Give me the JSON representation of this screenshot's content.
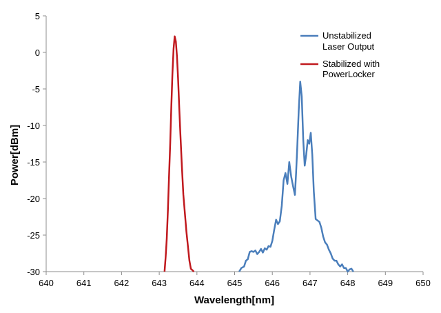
{
  "chart_data": {
    "type": "line",
    "xlabel": "Wavelength[nm]",
    "ylabel": "Power[dBm]",
    "xlim": [
      640,
      650
    ],
    "ylim": [
      -30,
      5
    ],
    "xticks": [
      "640",
      "641",
      "642",
      "643",
      "644",
      "645",
      "646",
      "647",
      "648",
      "649",
      "650"
    ],
    "yticks": [
      "5",
      "0",
      "-5",
      "-10",
      "-15",
      "-20",
      "-25",
      "-30"
    ],
    "grid": false,
    "legend_position": "top-right",
    "series": [
      {
        "name": "Unstabilized Laser Output",
        "legend_lines": [
          "Unstabilized",
          "Laser Output"
        ],
        "color": "#4a7ebb",
        "x": [
          645.12,
          645.18,
          645.25,
          645.3,
          645.35,
          645.4,
          645.45,
          645.5,
          645.55,
          645.6,
          645.65,
          645.7,
          645.75,
          645.8,
          645.85,
          645.9,
          645.95,
          646.0,
          646.05,
          646.1,
          646.15,
          646.2,
          646.25,
          646.3,
          646.35,
          646.4,
          646.45,
          646.5,
          646.55,
          646.6,
          646.63,
          646.66,
          646.7,
          646.74,
          646.78,
          646.82,
          646.86,
          646.9,
          646.94,
          646.98,
          647.02,
          647.06,
          647.1,
          647.15,
          647.2,
          647.25,
          647.3,
          647.35,
          647.4,
          647.45,
          647.5,
          647.55,
          647.6,
          647.65,
          647.7,
          647.75,
          647.8,
          647.85,
          647.9,
          647.95,
          648.0,
          648.05,
          648.1,
          648.15
        ],
        "y": [
          -30,
          -29.5,
          -29.3,
          -28.5,
          -28.3,
          -27.3,
          -27.2,
          -27.3,
          -27.1,
          -27.6,
          -27.3,
          -26.9,
          -27.4,
          -26.8,
          -27.0,
          -26.5,
          -26.6,
          -25.8,
          -24.3,
          -22.9,
          -23.5,
          -23.1,
          -21.0,
          -17.5,
          -16.5,
          -18.0,
          -15.0,
          -17.0,
          -18.3,
          -19.5,
          -16.5,
          -13.2,
          -8.0,
          -4.0,
          -6.0,
          -12.0,
          -15.5,
          -14.0,
          -12.0,
          -12.5,
          -11.0,
          -14.0,
          -19.0,
          -22.8,
          -23.0,
          -23.2,
          -24.0,
          -25.2,
          -26.0,
          -26.3,
          -27.0,
          -27.5,
          -28.2,
          -28.5,
          -28.5,
          -29.0,
          -29.3,
          -29.0,
          -29.5,
          -29.5,
          -30.0,
          -29.7,
          -29.6,
          -30.0
        ]
      },
      {
        "name": "Stabilized with PowerLocker",
        "legend_lines": [
          "Stabilized with",
          "PowerLocker"
        ],
        "color": "#c0191e",
        "x": [
          643.14,
          643.17,
          643.2,
          643.23,
          643.26,
          643.29,
          643.32,
          643.35,
          643.38,
          643.41,
          643.44,
          643.47,
          643.5,
          643.53,
          643.56,
          643.6,
          643.64,
          643.68,
          643.72,
          643.76,
          643.8,
          643.84,
          643.88,
          643.92
        ],
        "y": [
          -30.0,
          -28.0,
          -25.5,
          -21.5,
          -17.0,
          -12.5,
          -7.5,
          -3.0,
          0.5,
          2.2,
          1.5,
          -0.5,
          -3.5,
          -7.5,
          -11.0,
          -15.5,
          -19.5,
          -22.0,
          -24.5,
          -26.5,
          -28.5,
          -29.6,
          -29.8,
          -30.0
        ]
      }
    ]
  }
}
